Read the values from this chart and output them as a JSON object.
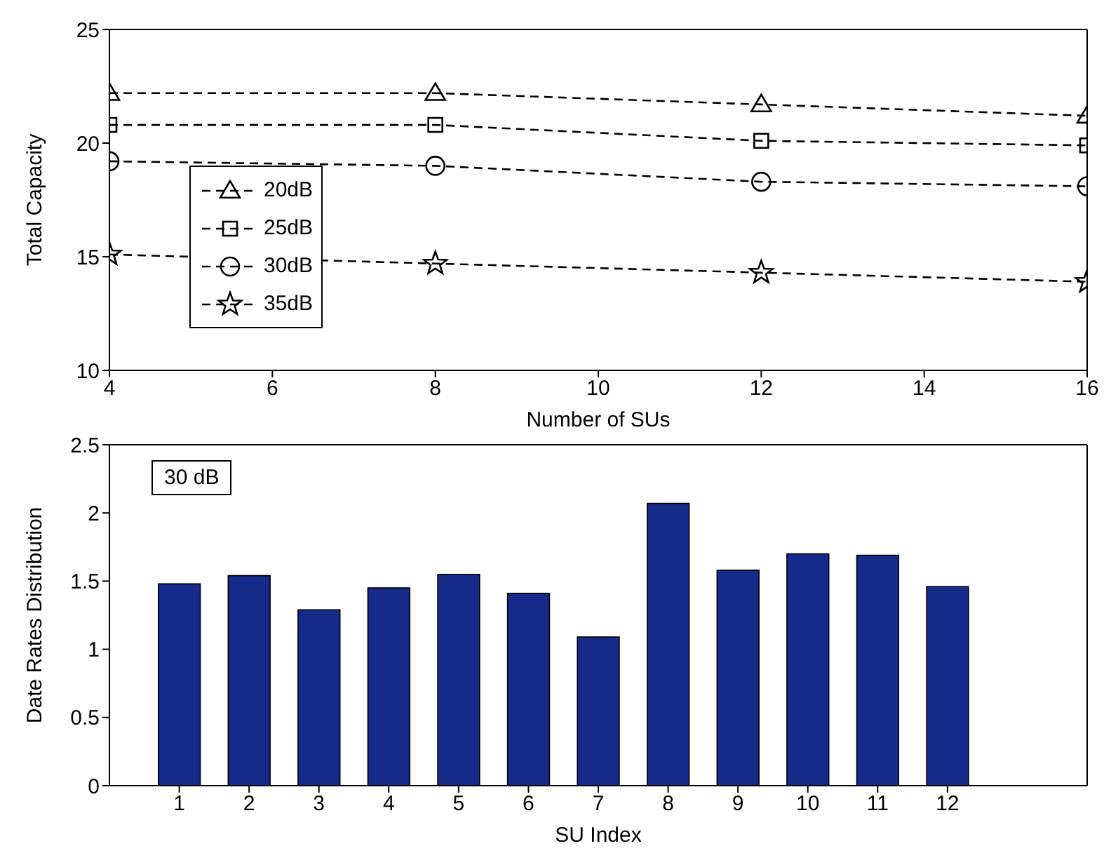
{
  "chart_data": [
    {
      "type": "line",
      "xlabel": "Number of SUs",
      "ylabel": "Total Capacity",
      "x": [
        4,
        8,
        12,
        16
      ],
      "xlim": [
        4,
        16
      ],
      "xticks": [
        4,
        6,
        8,
        10,
        12,
        14,
        16
      ],
      "ylim": [
        10,
        25
      ],
      "yticks": [
        10,
        15,
        20,
        25
      ],
      "grid": false,
      "legend": "left",
      "line_style": "dashed",
      "series": [
        {
          "name": "20dB",
          "color": "#000000",
          "marker": "triangle",
          "values": [
            22.2,
            22.2,
            21.7,
            21.2
          ]
        },
        {
          "name": "25dB",
          "color": "#000000",
          "marker": "square",
          "values": [
            20.8,
            20.8,
            20.1,
            19.9
          ]
        },
        {
          "name": "30dB",
          "color": "#000000",
          "marker": "circle",
          "values": [
            19.2,
            19.0,
            18.3,
            18.1
          ]
        },
        {
          "name": "35dB",
          "color": "#000000",
          "marker": "star",
          "values": [
            15.1,
            14.7,
            14.3,
            13.9
          ]
        }
      ]
    },
    {
      "type": "bar",
      "xlabel": "SU Index",
      "ylabel": "Date Rates Distribution",
      "x": [
        1,
        2,
        3,
        4,
        5,
        6,
        7,
        8,
        9,
        10,
        11,
        12
      ],
      "xlim": [
        0,
        14
      ],
      "xticks": [
        1,
        2,
        3,
        4,
        5,
        6,
        7,
        8,
        9,
        10,
        11,
        12
      ],
      "ylim": [
        0,
        2.5
      ],
      "yticks": [
        0,
        0.5,
        1,
        1.5,
        2,
        2.5
      ],
      "grid": false,
      "color": "#152a89",
      "values": [
        1.48,
        1.54,
        1.29,
        1.45,
        1.55,
        1.41,
        1.09,
        2.07,
        1.58,
        1.7,
        1.69,
        1.46
      ],
      "annotations": [
        "30 dB"
      ]
    }
  ]
}
